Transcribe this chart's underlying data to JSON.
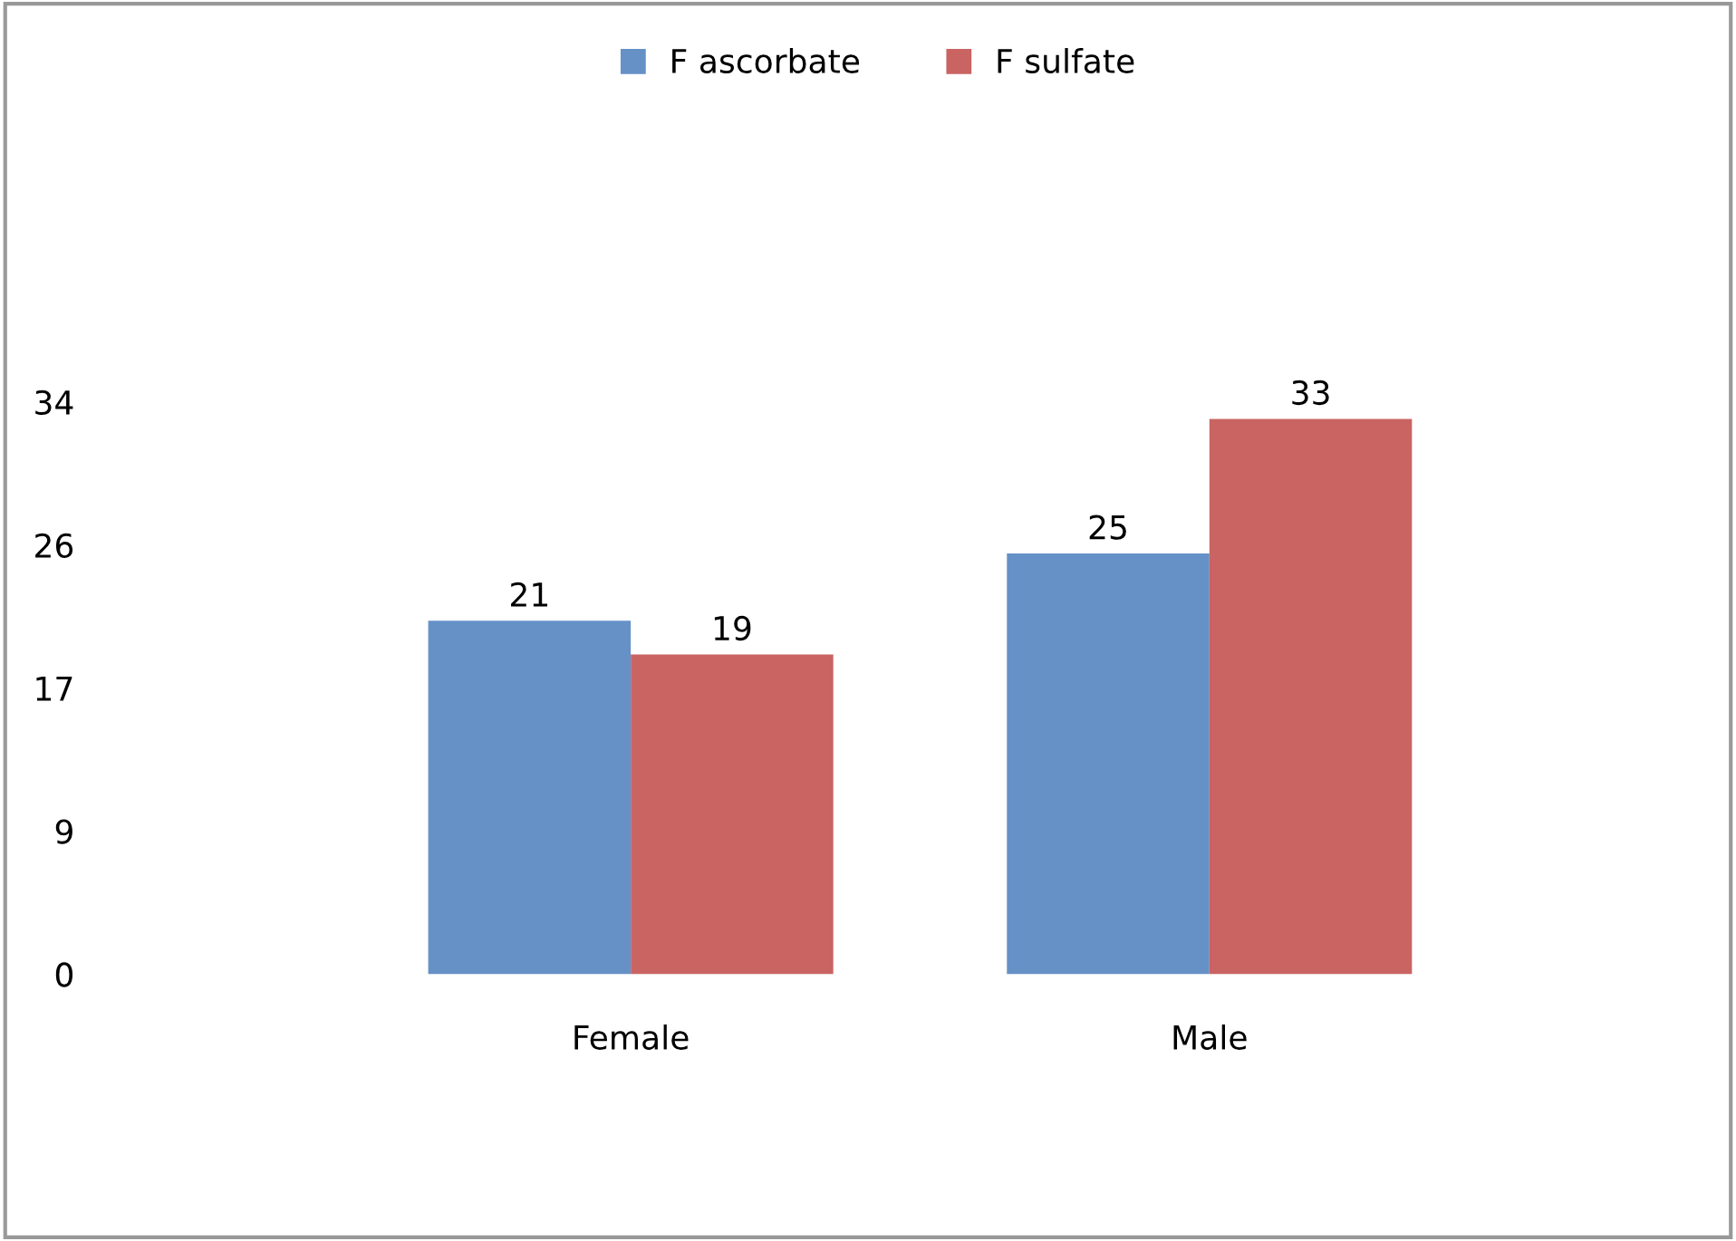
{
  "chart_data": {
    "type": "bar",
    "categories": [
      "Female",
      "Male"
    ],
    "series": [
      {
        "name": "F ascorbate",
        "color": "#6591c7",
        "values": [
          21,
          25
        ]
      },
      {
        "name": "F sulfate",
        "color": "#c96462",
        "values": [
          19,
          33
        ]
      }
    ],
    "ylim": [
      0,
      34
    ],
    "yticks": [
      0,
      {
        "value": 8.5,
        "label": "9"
      },
      17,
      {
        "value": 25.5,
        "label": "26"
      },
      34
    ],
    "data_labels": true,
    "legend": "top",
    "grid": false
  }
}
